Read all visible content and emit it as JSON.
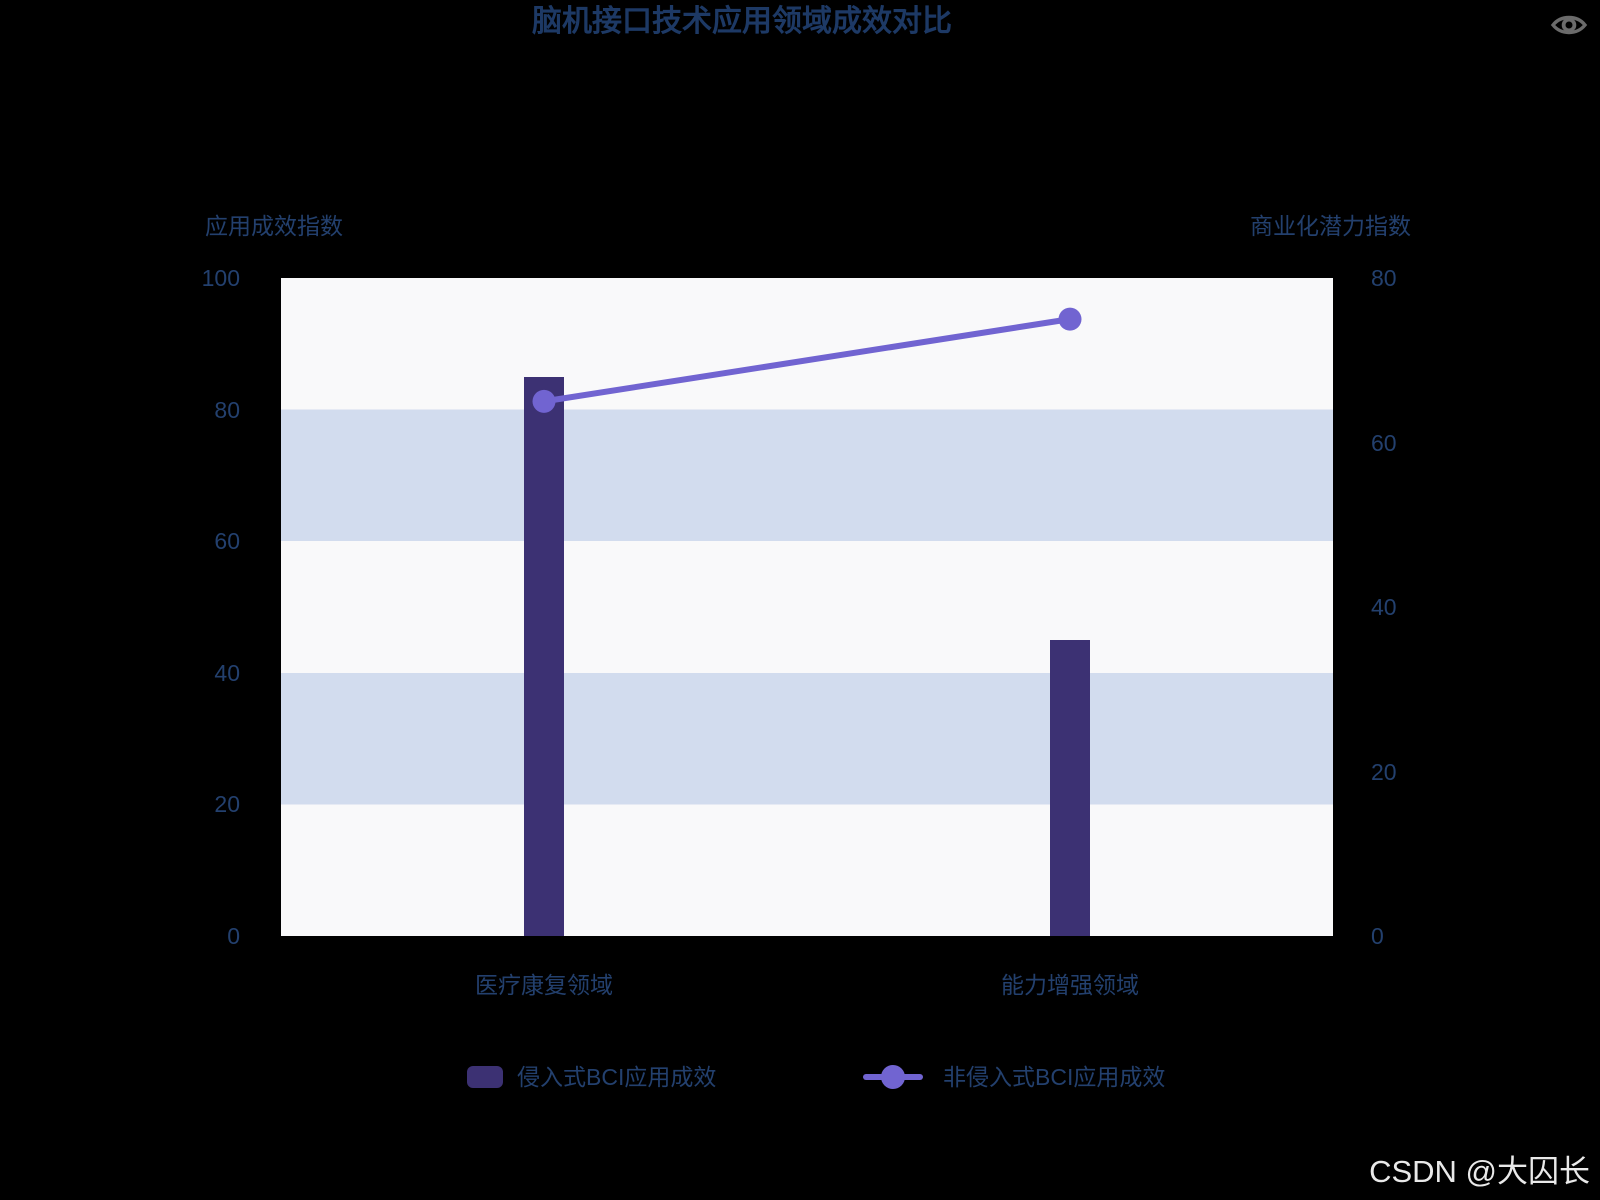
{
  "title": "脑机接口技术应用领域成效对比",
  "watermark": "CSDN @大囚长",
  "toolbox": {
    "view_button": "eye-icon"
  },
  "colors": {
    "background": "#000000",
    "title_text": "#1d3965",
    "axis_text": "#23406e",
    "watermark_text": "#e9e9e9",
    "toolbox_icon": "#6b6b6b",
    "band_light": "#f9f9fa",
    "band_blue": "#d2dcee"
  },
  "chart_data": {
    "type": "combo",
    "title": "脑机接口技术应用领域成效对比",
    "categories": [
      "医疗康复领域",
      "能力增强领域"
    ],
    "series": [
      {
        "name": "侵入式BCI应用成效",
        "type": "bar",
        "yaxis": "left",
        "values": [
          85,
          45
        ],
        "color": "#3c3173"
      },
      {
        "name": "非侵入式BCI应用成效",
        "type": "line",
        "yaxis": "right",
        "values": [
          65,
          75
        ],
        "color": "#7164d1",
        "marker": "circle"
      }
    ],
    "left_axis": {
      "name": "应用成效指数",
      "range": [
        0,
        100
      ],
      "ticks": [
        100,
        80,
        60,
        40,
        20,
        0
      ]
    },
    "right_axis": {
      "name": "商业化潜力指数",
      "range": [
        0,
        80
      ],
      "ticks": [
        80,
        60,
        40,
        20,
        0
      ]
    },
    "legend_position": "bottom",
    "grid_style": "alternating horizontal split-area bands (light / blue)"
  }
}
